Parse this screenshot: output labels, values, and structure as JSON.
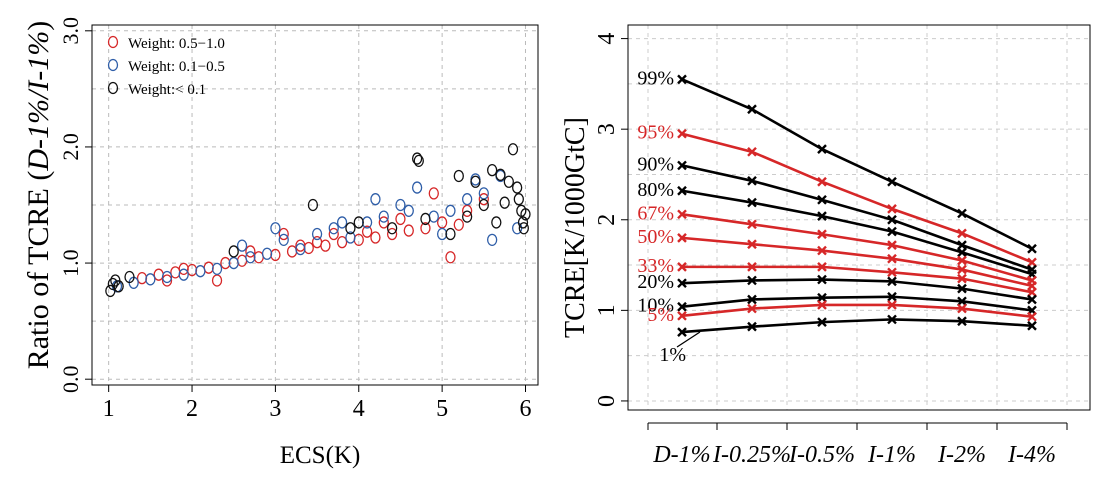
{
  "chart_data": [
    {
      "type": "scatter",
      "ylabel_prefix": "Ratio of TCRE (",
      "ylabel_italic": "D-1%/I-1%",
      "ylabel_suffix": ")",
      "xlabel": "ECS(K)",
      "xlim": [
        0.8,
        6.15
      ],
      "ylim": [
        -0.05,
        3.05
      ],
      "xticks": [
        1,
        2,
        3,
        4,
        5,
        6
      ],
      "yticks": [
        0.0,
        1.0,
        2.0,
        3.0
      ],
      "ytick_labels": [
        "0.0",
        "1.0",
        "2.0",
        "3.0"
      ],
      "grid": true,
      "legend_position": "top-left",
      "series": [
        {
          "name": "Weight: 0.5−1.0",
          "color": "#d62728",
          "points": [
            [
              1.4,
              0.87
            ],
            [
              1.6,
              0.9
            ],
            [
              1.8,
              0.92
            ],
            [
              2.0,
              0.94
            ],
            [
              2.2,
              0.96
            ],
            [
              2.4,
              1.0
            ],
            [
              2.6,
              1.02
            ],
            [
              2.8,
              1.05
            ],
            [
              3.0,
              1.07
            ],
            [
              3.2,
              1.1
            ],
            [
              3.4,
              1.13
            ],
            [
              3.6,
              1.15
            ],
            [
              3.8,
              1.18
            ],
            [
              4.0,
              1.2
            ],
            [
              4.2,
              1.22
            ],
            [
              4.4,
              1.25
            ],
            [
              4.6,
              1.28
            ],
            [
              4.8,
              1.3
            ],
            [
              5.0,
              1.35
            ],
            [
              5.2,
              1.33
            ],
            [
              3.1,
              1.25
            ],
            [
              4.9,
              1.6
            ],
            [
              5.1,
              1.05
            ],
            [
              5.5,
              1.55
            ],
            [
              3.7,
              1.25
            ],
            [
              4.3,
              1.35
            ],
            [
              2.3,
              0.85
            ],
            [
              1.9,
              0.95
            ],
            [
              2.7,
              1.1
            ],
            [
              3.5,
              1.18
            ],
            [
              4.1,
              1.27
            ],
            [
              4.5,
              1.38
            ],
            [
              5.3,
              1.45
            ],
            [
              1.7,
              0.85
            ],
            [
              3.3,
              1.15
            ]
          ]
        },
        {
          "name": "Weight: 0.1−0.5",
          "color": "#2f5ea8",
          "points": [
            [
              1.1,
              0.8
            ],
            [
              1.3,
              0.83
            ],
            [
              1.5,
              0.86
            ],
            [
              1.7,
              0.88
            ],
            [
              1.9,
              0.9
            ],
            [
              2.1,
              0.93
            ],
            [
              2.3,
              0.95
            ],
            [
              2.5,
              1.0
            ],
            [
              2.7,
              1.05
            ],
            [
              2.9,
              1.08
            ],
            [
              3.1,
              1.2
            ],
            [
              3.3,
              1.12
            ],
            [
              3.5,
              1.25
            ],
            [
              3.7,
              1.3
            ],
            [
              3.9,
              1.22
            ],
            [
              4.1,
              1.35
            ],
            [
              4.3,
              1.4
            ],
            [
              4.5,
              1.5
            ],
            [
              4.7,
              1.65
            ],
            [
              4.9,
              1.4
            ],
            [
              5.1,
              1.45
            ],
            [
              5.3,
              1.55
            ],
            [
              5.5,
              1.6
            ],
            [
              5.7,
              1.75
            ],
            [
              5.9,
              1.3
            ],
            [
              3.0,
              1.3
            ],
            [
              4.6,
              1.45
            ],
            [
              5.0,
              1.25
            ],
            [
              5.6,
              1.2
            ],
            [
              2.6,
              1.15
            ],
            [
              3.8,
              1.35
            ],
            [
              4.2,
              1.55
            ],
            [
              5.4,
              1.72
            ]
          ]
        },
        {
          "name": "Weight:< 0.1",
          "color": "#111111",
          "points": [
            [
              1.02,
              0.76
            ],
            [
              1.05,
              0.82
            ],
            [
              1.08,
              0.85
            ],
            [
              1.12,
              0.8
            ],
            [
              1.25,
              0.88
            ],
            [
              2.5,
              1.1
            ],
            [
              3.45,
              1.5
            ],
            [
              4.7,
              1.9
            ],
            [
              4.72,
              1.88
            ],
            [
              5.2,
              1.75
            ],
            [
              5.4,
              1.7
            ],
            [
              5.6,
              1.8
            ],
            [
              5.7,
              1.76
            ],
            [
              5.8,
              1.7
            ],
            [
              5.85,
              1.98
            ],
            [
              5.9,
              1.65
            ],
            [
              5.92,
              1.55
            ],
            [
              5.95,
              1.45
            ],
            [
              5.97,
              1.35
            ],
            [
              5.98,
              1.3
            ],
            [
              6.0,
              1.42
            ],
            [
              5.5,
              1.5
            ],
            [
              5.3,
              1.4
            ],
            [
              4.0,
              1.35
            ],
            [
              4.4,
              1.3
            ],
            [
              5.75,
              1.52
            ],
            [
              5.65,
              1.35
            ],
            [
              5.1,
              1.25
            ],
            [
              3.9,
              1.3
            ],
            [
              4.8,
              1.38
            ]
          ]
        }
      ]
    },
    {
      "type": "line",
      "ylabel": "TCRE[K/1000GtC]",
      "categories": [
        "D-1%",
        "I-0.25%",
        "I-0.5%",
        "I-1%",
        "I-2%",
        "I-4%"
      ],
      "ylim": [
        -0.1,
        4.15
      ],
      "yticks": [
        0,
        1,
        2,
        3,
        4
      ],
      "ytick_labels": [
        "0",
        "1",
        "2",
        "3",
        "4"
      ],
      "grid": true,
      "series": [
        {
          "name": "99%",
          "color": "#000000",
          "values": [
            3.55,
            3.22,
            2.78,
            2.42,
            2.07,
            1.68
          ]
        },
        {
          "name": "95%",
          "color": "#d62728",
          "values": [
            2.95,
            2.75,
            2.42,
            2.12,
            1.85,
            1.53
          ]
        },
        {
          "name": "90%",
          "color": "#000000",
          "values": [
            2.6,
            2.43,
            2.22,
            2.0,
            1.72,
            1.45
          ]
        },
        {
          "name": "80%",
          "color": "#000000",
          "values": [
            2.32,
            2.19,
            2.04,
            1.87,
            1.64,
            1.4
          ]
        },
        {
          "name": "67%",
          "color": "#d62728",
          "values": [
            2.06,
            1.95,
            1.84,
            1.72,
            1.55,
            1.33
          ]
        },
        {
          "name": "50%",
          "color": "#d62728",
          "values": [
            1.8,
            1.73,
            1.66,
            1.57,
            1.45,
            1.27
          ]
        },
        {
          "name": "33%",
          "color": "#d62728",
          "values": [
            1.48,
            1.48,
            1.48,
            1.42,
            1.35,
            1.2
          ]
        },
        {
          "name": "20%",
          "color": "#000000",
          "values": [
            1.3,
            1.33,
            1.34,
            1.32,
            1.24,
            1.12
          ]
        },
        {
          "name": "10%",
          "color": "#000000",
          "values": [
            1.04,
            1.12,
            1.14,
            1.15,
            1.1,
            1.0
          ]
        },
        {
          "name": "5%",
          "color": "#d62728",
          "values": [
            0.94,
            1.02,
            1.06,
            1.06,
            1.02,
            0.93
          ]
        },
        {
          "name": "1%",
          "color": "#000000",
          "values": [
            0.76,
            0.82,
            0.87,
            0.9,
            0.88,
            0.83
          ]
        }
      ]
    }
  ]
}
